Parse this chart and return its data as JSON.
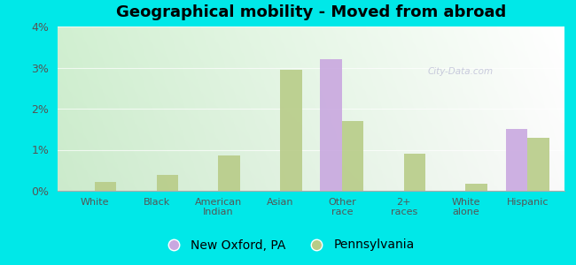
{
  "title": "Geographical mobility - Moved from abroad",
  "categories": [
    "White",
    "Black",
    "American\nIndian",
    "Asian",
    "Other\nrace",
    "2+\nraces",
    "White\nalone",
    "Hispanic"
  ],
  "new_oxford": [
    0.0,
    0.0,
    0.0,
    0.0,
    3.2,
    0.0,
    0.0,
    1.5
  ],
  "pennsylvania": [
    0.22,
    0.38,
    0.85,
    2.95,
    1.7,
    0.9,
    0.18,
    1.28
  ],
  "bar_color_oxford": "#c9a8e0",
  "bar_color_pa": "#b8cc88",
  "cyan_bg": "#00e8e8",
  "plot_bg_topleft": "#e8f5e8",
  "plot_bg_bottomleft": "#c8ead8",
  "plot_bg_topright": "#f5f5f5",
  "ylim": [
    0,
    4.0
  ],
  "yticks": [
    0,
    1,
    2,
    3,
    4
  ],
  "ytick_labels": [
    "0%",
    "1%",
    "2%",
    "3%",
    "4%"
  ],
  "legend_oxford": "New Oxford, PA",
  "legend_pa": "Pennsylvania",
  "bar_width": 0.35,
  "watermark": "City-Data.com",
  "title_fontsize": 13,
  "tick_fontsize": 8,
  "legend_fontsize": 10
}
